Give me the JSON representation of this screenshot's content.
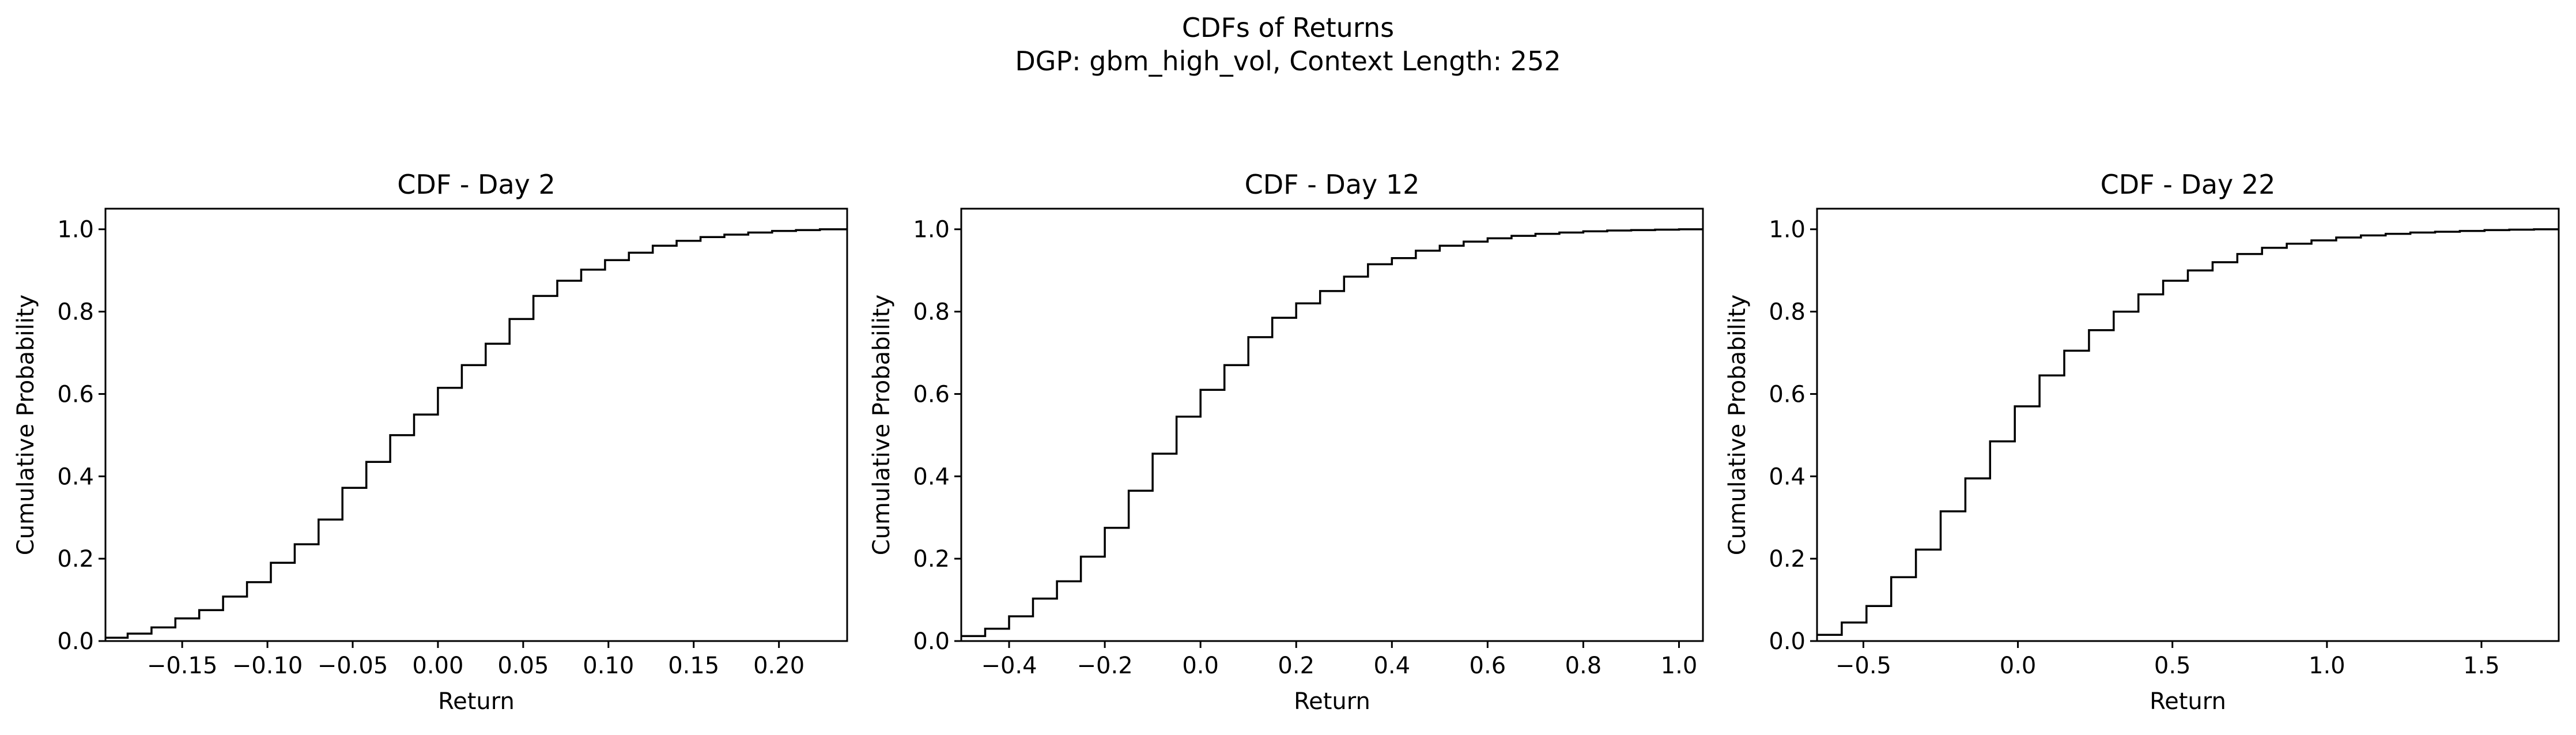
{
  "figure": {
    "suptitle": [
      "CDFs of Returns",
      "DGP: gbm_high_vol, Context Length: 252"
    ],
    "line_color": "#000000",
    "background": "#ffffff"
  },
  "chart_data": [
    {
      "type": "line",
      "subtype": "step-cdf",
      "title": "CDF - Day 2",
      "xlabel": "Return",
      "ylabel": "Cumulative Probability",
      "xlim": [
        -0.195,
        0.24
      ],
      "ylim": [
        0.0,
        1.05
      ],
      "xticks": [
        -0.15,
        -0.1,
        -0.05,
        0.0,
        0.05,
        0.1,
        0.15,
        0.2
      ],
      "xtick_labels": [
        "−0.15",
        "−0.10",
        "−0.05",
        "0.00",
        "0.05",
        "0.10",
        "0.15",
        "0.20"
      ],
      "yticks": [
        0.0,
        0.2,
        0.4,
        0.6,
        0.8,
        1.0
      ],
      "ytick_labels": [
        "0.0",
        "0.2",
        "0.4",
        "0.6",
        "0.8",
        "1.0"
      ],
      "grid": false,
      "series": [
        {
          "x": [
            -0.195,
            -0.182,
            -0.168,
            -0.154,
            -0.14,
            -0.126,
            -0.112,
            -0.098,
            -0.084,
            -0.07,
            -0.056,
            -0.042,
            -0.028,
            -0.014,
            0.0,
            0.014,
            0.028,
            0.042,
            0.056,
            0.07,
            0.084,
            0.098,
            0.112,
            0.126,
            0.14,
            0.154,
            0.168,
            0.182,
            0.196,
            0.21,
            0.224,
            0.235
          ],
          "y": [
            0.008,
            0.018,
            0.033,
            0.055,
            0.075,
            0.108,
            0.143,
            0.19,
            0.235,
            0.295,
            0.372,
            0.435,
            0.5,
            0.55,
            0.615,
            0.67,
            0.722,
            0.782,
            0.838,
            0.875,
            0.902,
            0.925,
            0.943,
            0.96,
            0.972,
            0.981,
            0.987,
            0.992,
            0.996,
            0.998,
            1.0,
            1.0
          ]
        }
      ]
    },
    {
      "type": "line",
      "subtype": "step-cdf",
      "title": "CDF - Day 12",
      "xlabel": "Return",
      "ylabel": "Cumulative Probability",
      "xlim": [
        -0.5,
        1.05
      ],
      "ylim": [
        0.0,
        1.05
      ],
      "xticks": [
        -0.4,
        -0.2,
        0.0,
        0.2,
        0.4,
        0.6,
        0.8,
        1.0
      ],
      "xtick_labels": [
        "−0.4",
        "−0.2",
        "0.0",
        "0.2",
        "0.4",
        "0.6",
        "0.8",
        "1.0"
      ],
      "yticks": [
        0.0,
        0.2,
        0.4,
        0.6,
        0.8,
        1.0
      ],
      "ytick_labels": [
        "0.0",
        "0.2",
        "0.4",
        "0.6",
        "0.8",
        "1.0"
      ],
      "grid": false,
      "series": [
        {
          "x": [
            -0.5,
            -0.45,
            -0.4,
            -0.35,
            -0.3,
            -0.25,
            -0.2,
            -0.15,
            -0.1,
            -0.05,
            0.0,
            0.05,
            0.1,
            0.15,
            0.2,
            0.25,
            0.3,
            0.35,
            0.4,
            0.45,
            0.5,
            0.55,
            0.6,
            0.65,
            0.7,
            0.75,
            0.8,
            0.85,
            0.9,
            0.95,
            1.0,
            1.04
          ],
          "y": [
            0.012,
            0.03,
            0.06,
            0.103,
            0.145,
            0.205,
            0.275,
            0.365,
            0.455,
            0.545,
            0.61,
            0.67,
            0.738,
            0.785,
            0.82,
            0.85,
            0.885,
            0.915,
            0.93,
            0.948,
            0.96,
            0.97,
            0.978,
            0.984,
            0.989,
            0.992,
            0.995,
            0.997,
            0.998,
            0.999,
            1.0,
            1.0
          ]
        }
      ]
    },
    {
      "type": "line",
      "subtype": "step-cdf",
      "title": "CDF - Day 22",
      "xlabel": "Return",
      "ylabel": "Cumulative Probability",
      "xlim": [
        -0.65,
        1.75
      ],
      "ylim": [
        0.0,
        1.05
      ],
      "xticks": [
        -0.5,
        0.0,
        0.5,
        1.0,
        1.5
      ],
      "xtick_labels": [
        "−0.5",
        "0.0",
        "0.5",
        "1.0",
        "1.5"
      ],
      "yticks": [
        0.0,
        0.2,
        0.4,
        0.6,
        0.8,
        1.0
      ],
      "ytick_labels": [
        "0.0",
        "0.2",
        "0.4",
        "0.6",
        "0.8",
        "1.0"
      ],
      "grid": false,
      "series": [
        {
          "x": [
            -0.65,
            -0.57,
            -0.49,
            -0.41,
            -0.33,
            -0.25,
            -0.17,
            -0.09,
            -0.01,
            0.07,
            0.15,
            0.23,
            0.31,
            0.39,
            0.47,
            0.55,
            0.63,
            0.71,
            0.79,
            0.87,
            0.95,
            1.03,
            1.11,
            1.19,
            1.27,
            1.35,
            1.43,
            1.51,
            1.59,
            1.67,
            1.74
          ],
          "y": [
            0.015,
            0.045,
            0.085,
            0.155,
            0.222,
            0.315,
            0.395,
            0.485,
            0.57,
            0.645,
            0.705,
            0.755,
            0.8,
            0.842,
            0.875,
            0.9,
            0.92,
            0.94,
            0.955,
            0.965,
            0.973,
            0.98,
            0.985,
            0.989,
            0.992,
            0.994,
            0.996,
            0.998,
            0.999,
            1.0,
            1.0
          ]
        }
      ]
    }
  ]
}
